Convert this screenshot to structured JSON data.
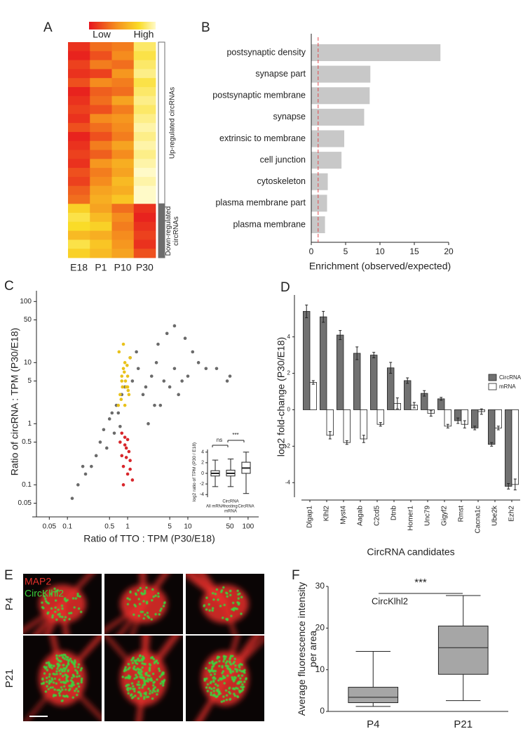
{
  "chart_data": [
    {
      "type": "heatmap",
      "label": "A",
      "colorbar_labels": [
        "Low",
        "High"
      ],
      "columns": [
        "E18",
        "P1",
        "P10",
        "P30"
      ],
      "values": [
        [
          0.1,
          0.3,
          0.35,
          0.85
        ],
        [
          0.05,
          0.2,
          0.4,
          0.8
        ],
        [
          0.15,
          0.35,
          0.3,
          0.85
        ],
        [
          0.1,
          0.15,
          0.45,
          0.9
        ],
        [
          0.2,
          0.4,
          0.35,
          0.8
        ],
        [
          0.05,
          0.25,
          0.3,
          0.85
        ],
        [
          0.1,
          0.3,
          0.5,
          0.9
        ],
        [
          0.15,
          0.2,
          0.35,
          0.85
        ],
        [
          0.1,
          0.4,
          0.45,
          0.9
        ],
        [
          0.2,
          0.3,
          0.4,
          0.95
        ],
        [
          0.05,
          0.2,
          0.35,
          0.9
        ],
        [
          0.1,
          0.35,
          0.5,
          0.95
        ],
        [
          0.15,
          0.25,
          0.4,
          0.9
        ],
        [
          0.1,
          0.45,
          0.55,
          0.95
        ],
        [
          0.2,
          0.35,
          0.5,
          1.0
        ],
        [
          0.15,
          0.4,
          0.6,
          0.95
        ],
        [
          0.25,
          0.5,
          0.55,
          1.0
        ],
        [
          0.3,
          0.55,
          0.65,
          1.0
        ],
        [
          0.7,
          0.5,
          0.3,
          0.1
        ],
        [
          0.8,
          0.6,
          0.4,
          0.05
        ],
        [
          0.75,
          0.7,
          0.35,
          0.1
        ],
        [
          0.6,
          0.55,
          0.4,
          0.15
        ],
        [
          0.8,
          0.65,
          0.45,
          0.1
        ],
        [
          0.7,
          0.6,
          0.5,
          0.2
        ]
      ],
      "groups": [
        {
          "label": "Up-regulated circRNAs",
          "rows": 18
        },
        {
          "label": "Down-regulated circRNAs",
          "rows": 6
        }
      ]
    },
    {
      "type": "bar",
      "label": "B",
      "orientation": "horizontal",
      "categories": [
        "postsynaptic density",
        "synapse part",
        "postsynaptic membrane",
        "synapse",
        "extrinsic to membrane",
        "cell junction",
        "cytoskeleton",
        "plasma membrane part",
        "plasma membrane"
      ],
      "values": [
        18.8,
        8.6,
        8.5,
        7.7,
        4.8,
        4.4,
        2.4,
        2.3,
        2.0
      ],
      "color": "#c8c8c8",
      "xlim": [
        0,
        20
      ],
      "xticks": [
        0,
        5,
        10,
        15,
        20
      ],
      "ref_line": 1,
      "ref_color": "#e0474c",
      "xlabel": "Enrichment (observed/expected)"
    },
    {
      "type": "scatter",
      "label": "C",
      "log": true,
      "xlim": [
        0.035,
        150
      ],
      "ylim": [
        0.035,
        150
      ],
      "xticks": [
        0.05,
        0.1,
        0.5,
        1,
        5,
        10,
        50,
        100
      ],
      "yticks": [
        0.05,
        0.1,
        0.5,
        1,
        5,
        10,
        50,
        100
      ],
      "xlabel": "Ratio of TTO : TPM (P30/E18)",
      "ylabel": "Ratio of circRNA : TPM (P30/E18)",
      "series": [
        {
          "color": "#6a6a6a",
          "x": [
            0.12,
            0.2,
            0.3,
            0.35,
            0.4,
            0.5,
            0.6,
            0.7,
            0.8,
            0.9,
            1.2,
            1.5,
            1.8,
            2,
            2.5,
            3,
            3.5,
            4,
            5,
            6,
            7,
            8,
            10,
            12,
            15,
            20,
            0.25,
            0.45,
            0.55,
            0.65,
            0.75,
            1.1,
            1.4,
            2.2,
            2.8,
            3.2,
            4.5,
            6,
            9,
            30,
            45,
            50,
            0.15,
            0.18
          ],
          "y": [
            0.06,
            0.15,
            0.3,
            0.5,
            0.8,
            1.2,
            0.7,
            1.5,
            3,
            4,
            5,
            8,
            3,
            4,
            6,
            10,
            2,
            5,
            4,
            8,
            3,
            5,
            6,
            15,
            10,
            8,
            0.2,
            0.4,
            1.5,
            2,
            0.9,
            12,
            15,
            1,
            2,
            20,
            30,
            40,
            25,
            8,
            5,
            6,
            0.1,
            0.2
          ]
        },
        {
          "color": "#e9c21b",
          "x": [
            0.7,
            0.75,
            0.8,
            0.85,
            0.9,
            0.95,
            1,
            1.05,
            1.1,
            0.72,
            0.78,
            0.82,
            0.88,
            0.92,
            0.98,
            1.02,
            0.8,
            0.9,
            1,
            0.85
          ],
          "y": [
            2,
            3,
            5,
            8,
            10,
            4,
            6,
            3,
            12,
            15,
            2.5,
            4,
            7,
            5,
            9,
            3.5,
            6,
            2,
            4,
            20
          ]
        },
        {
          "color": "#d8262b",
          "x": [
            0.75,
            0.8,
            0.85,
            0.9,
            0.95,
            1,
            1.05,
            1.1,
            1.2,
            0.8,
            0.9,
            1,
            1.1,
            0.85,
            0.95
          ],
          "y": [
            0.5,
            0.3,
            0.2,
            0.6,
            0.4,
            0.15,
            0.35,
            0.25,
            0.12,
            0.7,
            0.45,
            0.55,
            0.18,
            0.1,
            0.28
          ]
        }
      ]
    },
    {
      "type": "box",
      "categories": [
        "All mRNA",
        "CircRNA hosting mRNA",
        "CircRNA"
      ],
      "boxes": [
        {
          "min": -2.5,
          "q1": -0.5,
          "median": 0,
          "q3": 0.5,
          "max": 2.5
        },
        {
          "min": -2.5,
          "q1": -0.5,
          "median": 0,
          "q3": 0.6,
          "max": 2.7
        },
        {
          "min": -3.8,
          "q1": 0,
          "median": 1,
          "q3": 2.1,
          "max": 4
        }
      ],
      "color": "#ffffff",
      "ylim": [
        -4.5,
        4.5
      ],
      "yticks": [
        -4,
        -2,
        0,
        2,
        4
      ],
      "ylabel": "log2 ratio of  TPM (P30 / E18)",
      "annotations": [
        {
          "text": "ns"
        },
        {
          "text": "***"
        }
      ]
    },
    {
      "type": "bar",
      "label": "D",
      "categories": [
        "Dlgap1",
        "Klhl2",
        "Myst4",
        "Aagab",
        "C2cd5",
        "Dtnb",
        "Homer1",
        "Unc79",
        "Gigyf2",
        "Rmst",
        "Cacna1c",
        "Ube2k",
        "Ezh2"
      ],
      "series": [
        {
          "name": "CircRNA",
          "color": "#717171",
          "values": [
            5.4,
            5.1,
            4.1,
            3.1,
            3.0,
            2.3,
            1.6,
            0.9,
            0.6,
            -0.6,
            -1.0,
            -1.9,
            -4.2
          ],
          "errors": [
            0.35,
            0.3,
            0.25,
            0.35,
            0.15,
            0.3,
            0.15,
            0.15,
            0.08,
            0.15,
            0.1,
            0.1,
            0.15
          ]
        },
        {
          "name": "mRNA",
          "color": "#ffffff",
          "values": [
            1.5,
            -1.4,
            -1.8,
            -1.6,
            -0.8,
            0.35,
            0.25,
            -0.2,
            -0.9,
            -0.8,
            -0.1,
            -1.0,
            -4.1
          ],
          "errors": [
            0.1,
            0.2,
            0.1,
            0.2,
            0.1,
            0.3,
            0.15,
            0.15,
            0.1,
            0.2,
            0.15,
            0.1,
            0.3
          ]
        }
      ],
      "ylim": [
        -4.8,
        6.3
      ],
      "yticks": [
        -4,
        -2,
        0,
        2,
        4
      ],
      "legend": "right",
      "ylabel": "log2 fold-change (P30/E18)",
      "xlabel": "CircRNA candidates"
    },
    {
      "type": "box",
      "label": "F",
      "categories": [
        "P4",
        "P21"
      ],
      "boxes": [
        {
          "min": 1.2,
          "q1": 2.1,
          "median": 3.4,
          "q3": 5.8,
          "max": 14.4
        },
        {
          "min": 2.6,
          "q1": 8.9,
          "median": 15.3,
          "q3": 20.5,
          "max": 27.8
        }
      ],
      "color": "#a6a6a6",
      "ylim": [
        0,
        30
      ],
      "yticks": [
        0,
        10,
        20,
        30
      ],
      "ylabel": "Average fluorescence intensity per area",
      "annotations": [
        {
          "text": "CircKlhl2"
        },
        {
          "text": "***"
        }
      ]
    }
  ],
  "images": {
    "label": "E",
    "stains": [
      {
        "text": "MAP2",
        "color": "#e8302a"
      },
      {
        "text": "CircKlhl2",
        "color": "#3cd23c"
      }
    ],
    "rows": [
      "P4",
      "P21"
    ]
  }
}
